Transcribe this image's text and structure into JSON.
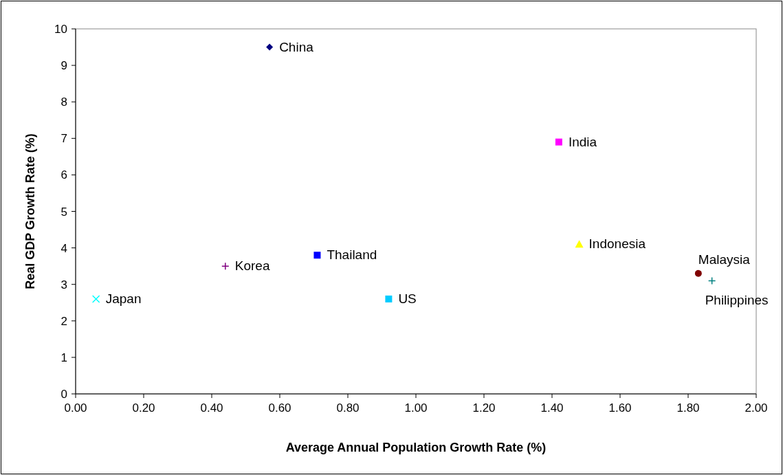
{
  "chart_data": {
    "type": "scatter",
    "xlabel": "Average Annual Population Growth Rate (%)",
    "ylabel": "Real GDP Growth Rate (%)",
    "xlim": [
      0,
      2
    ],
    "ylim": [
      0,
      10
    ],
    "xticks": [
      {
        "value": 0,
        "label": "0.00"
      },
      {
        "value": 0.2,
        "label": "0.20"
      },
      {
        "value": 0.4,
        "label": "0.40"
      },
      {
        "value": 0.6,
        "label": "0.60"
      },
      {
        "value": 0.8,
        "label": "0.80"
      },
      {
        "value": 1,
        "label": "1.00"
      },
      {
        "value": 1.2,
        "label": "1.20"
      },
      {
        "value": 1.4,
        "label": "1.40"
      },
      {
        "value": 1.6,
        "label": "1.60"
      },
      {
        "value": 1.8,
        "label": "1.80"
      },
      {
        "value": 2,
        "label": "2.00"
      }
    ],
    "yticks": [
      0,
      1,
      2,
      3,
      4,
      5,
      6,
      7,
      8,
      9,
      10
    ],
    "grid": false,
    "series": [
      {
        "name": "China",
        "color": "#000080",
        "marker": "diamond",
        "x": [
          0.57
        ],
        "values": [
          9.5
        ]
      },
      {
        "name": "India",
        "color": "#ff00ff",
        "marker": "square",
        "x": [
          1.42
        ],
        "values": [
          6.9
        ]
      },
      {
        "name": "Indonesia",
        "color": "#ffff00",
        "marker": "triangle",
        "x": [
          1.48
        ],
        "values": [
          4.1
        ]
      },
      {
        "name": "Malaysia",
        "color": "#800000",
        "marker": "circle",
        "x": [
          1.83
        ],
        "values": [
          3.3
        ]
      },
      {
        "name": "Philippines",
        "color": "#008080",
        "marker": "cross",
        "x": [
          1.87
        ],
        "values": [
          3.1
        ]
      },
      {
        "name": "Korea",
        "color": "#800080",
        "marker": "cross",
        "x": [
          0.44
        ],
        "values": [
          3.5
        ]
      },
      {
        "name": "Thailand",
        "color": "#0000ff",
        "marker": "square",
        "x": [
          0.71
        ],
        "values": [
          3.8
        ]
      },
      {
        "name": "US",
        "color": "#00ccff",
        "marker": "square",
        "x": [
          0.92
        ],
        "values": [
          2.6
        ]
      },
      {
        "name": "Japan",
        "color": "#00ffff",
        "marker": "x",
        "x": [
          0.06
        ],
        "values": [
          2.6
        ]
      }
    ]
  }
}
